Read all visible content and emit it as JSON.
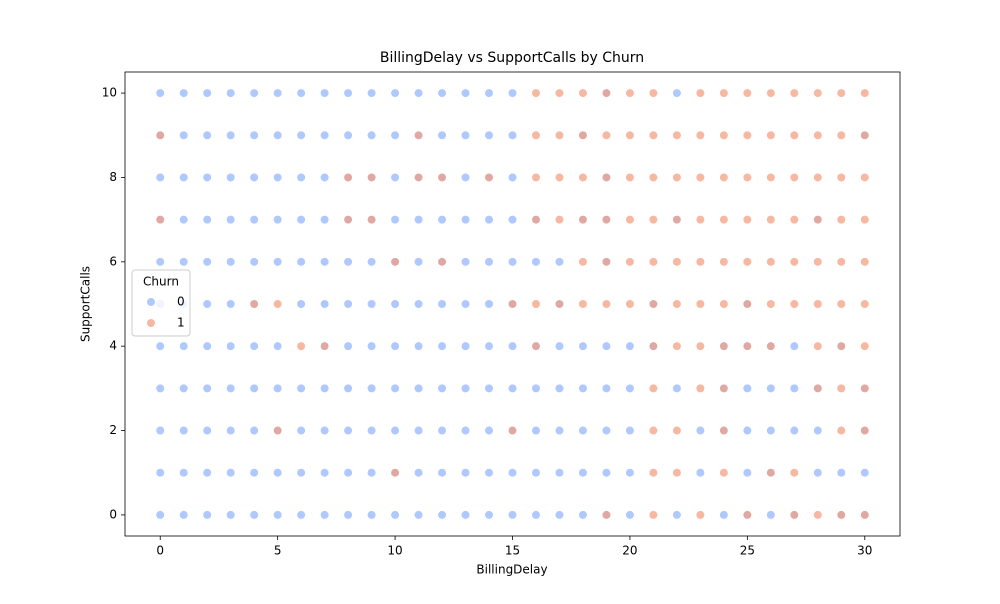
{
  "chart_data": {
    "type": "scatter",
    "title": "BillingDelay vs SupportCalls by Churn",
    "x_label": "BillingDelay",
    "y_label": "SupportCalls",
    "legend_title": "Churn",
    "legend_position": "center left",
    "alpha": 0.7,
    "xlim": [
      -1.5,
      31.5
    ],
    "ylim": [
      -0.5,
      10.5
    ],
    "xticks": [
      0,
      5,
      10,
      15,
      20,
      25,
      30
    ],
    "yticks": [
      0,
      2,
      4,
      6,
      8,
      10
    ],
    "series": [
      {
        "name": "0",
        "color": "#8db0fe",
        "x": [
          0,
          1,
          2,
          3,
          4,
          5,
          6,
          7,
          8,
          9,
          10,
          11,
          12,
          13,
          14,
          15,
          19,
          22,
          0,
          1,
          2,
          3,
          4,
          5,
          6,
          7,
          8,
          9,
          10,
          11,
          12,
          13,
          14,
          15,
          18,
          30,
          0,
          1,
          2,
          3,
          4,
          5,
          6,
          7,
          8,
          9,
          10,
          11,
          12,
          13,
          14,
          15,
          19,
          0,
          1,
          2,
          3,
          4,
          5,
          6,
          7,
          8,
          9,
          10,
          11,
          12,
          13,
          14,
          15,
          16,
          18,
          19,
          22,
          28,
          0,
          1,
          2,
          3,
          4,
          5,
          6,
          7,
          8,
          9,
          10,
          11,
          12,
          13,
          14,
          15,
          16,
          17,
          19,
          0,
          1,
          2,
          3,
          4,
          6,
          7,
          8,
          9,
          10,
          11,
          12,
          13,
          14,
          15,
          17,
          21,
          25,
          0,
          1,
          2,
          3,
          4,
          5,
          7,
          8,
          9,
          10,
          11,
          12,
          13,
          14,
          15,
          16,
          17,
          18,
          19,
          20,
          21,
          24,
          25,
          26,
          27,
          29,
          0,
          1,
          2,
          3,
          4,
          5,
          6,
          7,
          8,
          9,
          10,
          11,
          12,
          13,
          14,
          15,
          16,
          17,
          18,
          19,
          20,
          22,
          24,
          25,
          26,
          27,
          28,
          30,
          0,
          1,
          2,
          3,
          4,
          5,
          6,
          7,
          8,
          9,
          10,
          11,
          12,
          13,
          14,
          15,
          16,
          17,
          18,
          19,
          20,
          23,
          24,
          25,
          26,
          27,
          28,
          30,
          0,
          1,
          2,
          3,
          4,
          5,
          6,
          7,
          8,
          9,
          10,
          11,
          12,
          13,
          14,
          15,
          16,
          17,
          18,
          19,
          20,
          23,
          25,
          26,
          28,
          29,
          30,
          0,
          1,
          2,
          3,
          4,
          5,
          6,
          7,
          8,
          9,
          10,
          11,
          12,
          13,
          14,
          15,
          16,
          17,
          18,
          19,
          20,
          22,
          24,
          25,
          26,
          27,
          29,
          30
        ],
        "values": [
          10,
          10,
          10,
          10,
          10,
          10,
          10,
          10,
          10,
          10,
          10,
          10,
          10,
          10,
          10,
          10,
          10,
          10,
          9,
          9,
          9,
          9,
          9,
          9,
          9,
          9,
          9,
          9,
          9,
          9,
          9,
          9,
          9,
          9,
          9,
          9,
          8,
          8,
          8,
          8,
          8,
          8,
          8,
          8,
          8,
          8,
          8,
          8,
          8,
          8,
          8,
          8,
          8,
          7,
          7,
          7,
          7,
          7,
          7,
          7,
          7,
          7,
          7,
          7,
          7,
          7,
          7,
          7,
          7,
          7,
          7,
          7,
          7,
          7,
          6,
          6,
          6,
          6,
          6,
          6,
          6,
          6,
          6,
          6,
          6,
          6,
          6,
          6,
          6,
          6,
          6,
          6,
          6,
          5,
          5,
          5,
          5,
          5,
          5,
          5,
          5,
          5,
          5,
          5,
          5,
          5,
          5,
          5,
          5,
          5,
          5,
          4,
          4,
          4,
          4,
          4,
          4,
          4,
          4,
          4,
          4,
          4,
          4,
          4,
          4,
          4,
          4,
          4,
          4,
          4,
          4,
          4,
          4,
          4,
          4,
          4,
          4,
          3,
          3,
          3,
          3,
          3,
          3,
          3,
          3,
          3,
          3,
          3,
          3,
          3,
          3,
          3,
          3,
          3,
          3,
          3,
          3,
          3,
          3,
          3,
          3,
          3,
          3,
          3,
          3,
          2,
          2,
          2,
          2,
          2,
          2,
          2,
          2,
          2,
          2,
          2,
          2,
          2,
          2,
          2,
          2,
          2,
          2,
          2,
          2,
          2,
          2,
          2,
          2,
          2,
          2,
          2,
          2,
          1,
          1,
          1,
          1,
          1,
          1,
          1,
          1,
          1,
          1,
          1,
          1,
          1,
          1,
          1,
          1,
          1,
          1,
          1,
          1,
          1,
          1,
          1,
          1,
          1,
          1,
          1,
          0,
          0,
          0,
          0,
          0,
          0,
          0,
          0,
          0,
          0,
          0,
          0,
          0,
          0,
          0,
          0,
          0,
          0,
          0,
          0,
          0,
          0,
          0,
          0,
          0,
          0,
          0,
          0
        ]
      },
      {
        "name": "1",
        "color": "#f49a7b",
        "x": [
          16,
          17,
          18,
          19,
          20,
          21,
          23,
          24,
          25,
          26,
          27,
          28,
          29,
          30,
          0,
          11,
          16,
          17,
          18,
          19,
          20,
          21,
          22,
          23,
          24,
          25,
          26,
          27,
          28,
          29,
          30,
          8,
          9,
          11,
          12,
          14,
          16,
          17,
          18,
          19,
          20,
          21,
          22,
          23,
          24,
          25,
          26,
          27,
          28,
          29,
          30,
          0,
          8,
          9,
          16,
          17,
          18,
          19,
          20,
          21,
          22,
          23,
          24,
          25,
          26,
          27,
          28,
          29,
          30,
          10,
          12,
          18,
          19,
          20,
          21,
          22,
          23,
          24,
          25,
          26,
          27,
          28,
          29,
          30,
          4,
          5,
          15,
          16,
          17,
          18,
          19,
          20,
          21,
          22,
          23,
          24,
          25,
          26,
          27,
          28,
          29,
          30,
          6,
          7,
          16,
          21,
          22,
          23,
          24,
          25,
          26,
          28,
          29,
          30,
          21,
          23,
          24,
          28,
          29,
          30,
          5,
          15,
          21,
          22,
          24,
          29,
          30,
          10,
          21,
          22,
          24,
          26,
          27,
          19,
          21,
          23,
          25,
          27,
          28,
          29,
          30
        ],
        "values": [
          10,
          10,
          10,
          10,
          10,
          10,
          10,
          10,
          10,
          10,
          10,
          10,
          10,
          10,
          9,
          9,
          9,
          9,
          9,
          9,
          9,
          9,
          9,
          9,
          9,
          9,
          9,
          9,
          9,
          9,
          9,
          8,
          8,
          8,
          8,
          8,
          8,
          8,
          8,
          8,
          8,
          8,
          8,
          8,
          8,
          8,
          8,
          8,
          8,
          8,
          8,
          7,
          7,
          7,
          7,
          7,
          7,
          7,
          7,
          7,
          7,
          7,
          7,
          7,
          7,
          7,
          7,
          7,
          7,
          6,
          6,
          6,
          6,
          6,
          6,
          6,
          6,
          6,
          6,
          6,
          6,
          6,
          6,
          6,
          5,
          5,
          5,
          5,
          5,
          5,
          5,
          5,
          5,
          5,
          5,
          5,
          5,
          5,
          5,
          5,
          5,
          5,
          4,
          4,
          4,
          4,
          4,
          4,
          4,
          4,
          4,
          4,
          4,
          4,
          3,
          3,
          3,
          3,
          3,
          3,
          2,
          2,
          2,
          2,
          2,
          2,
          2,
          1,
          1,
          1,
          1,
          1,
          1,
          0,
          0,
          0,
          0,
          0,
          0,
          0,
          0
        ]
      }
    ]
  }
}
